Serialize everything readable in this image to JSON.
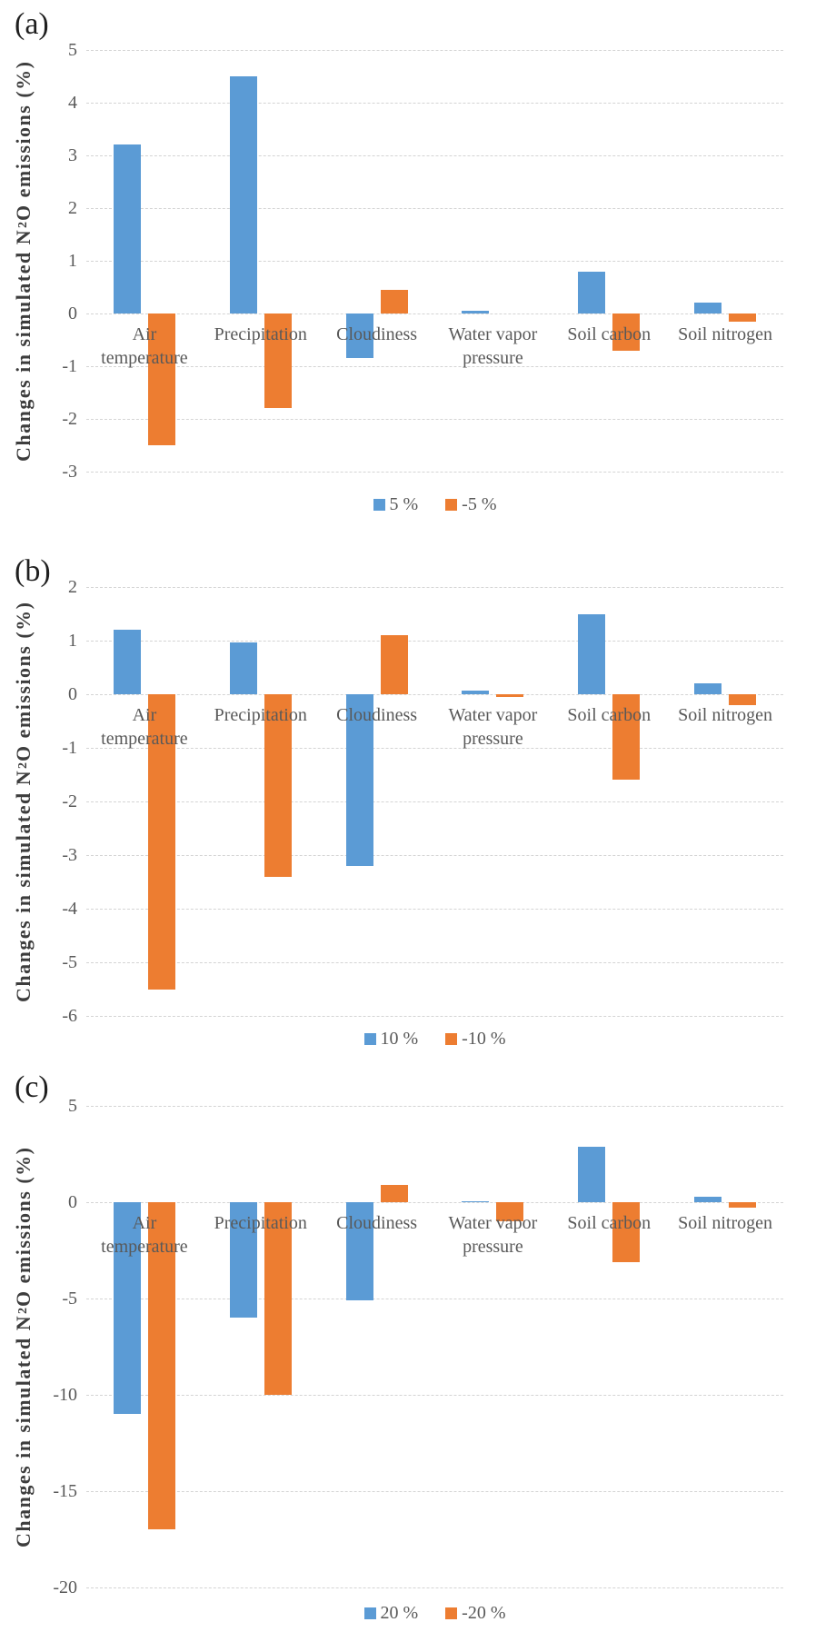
{
  "figure": {
    "background": "#ffffff",
    "text_color": "#595959",
    "gridline_color": "#d4d4d4",
    "positive_series_color": "#5B9BD5",
    "negative_series_color": "#ED7D31",
    "ylabel": "Changes in simulated N₂O emissions (%)",
    "ylabel_parts": {
      "pre": "Changes in simulated N",
      "sub": "2",
      "post": "O emissions (%)"
    }
  },
  "chart_data": [
    {
      "type": "bar",
      "panel_label": "(a)",
      "categories": [
        "Air temperature",
        "Precipitation",
        "Cloudiness",
        "Water vapor pressure",
        "Soil carbon",
        "Soil nitrogen"
      ],
      "category_lines": [
        [
          "Air",
          "temperature"
        ],
        [
          "Precipitation"
        ],
        [
          "Cloudiness"
        ],
        [
          "Water vapor",
          "pressure"
        ],
        [
          "Soil carbon"
        ],
        [
          "Soil nitrogen"
        ]
      ],
      "series": [
        {
          "name": "5 %",
          "color": "#5B9BD5",
          "values": [
            3.2,
            4.5,
            -0.85,
            0.05,
            0.8,
            0.2
          ]
        },
        {
          "name": "-5 %",
          "color": "#ED7D31",
          "values": [
            -2.5,
            -1.8,
            0.45,
            0,
            -0.7,
            -0.15
          ]
        }
      ],
      "ylabel": "Changes in simulated N₂O emissions (%)",
      "ylim": [
        -3,
        5
      ],
      "yticks": [
        5,
        4,
        3,
        2,
        1,
        0,
        -1,
        -2,
        -3
      ],
      "grid": true,
      "legend_position": "bottom"
    },
    {
      "type": "bar",
      "panel_label": "(b)",
      "categories": [
        "Air temperature",
        "Precipitation",
        "Cloudiness",
        "Water vapor pressure",
        "Soil carbon",
        "Soil nitrogen"
      ],
      "category_lines": [
        [
          "Air",
          "temperature"
        ],
        [
          "Precipitation"
        ],
        [
          "Cloudiness"
        ],
        [
          "Water vapor",
          "pressure"
        ],
        [
          "Soil carbon"
        ],
        [
          "Soil nitrogen"
        ]
      ],
      "series": [
        {
          "name": "10 %",
          "color": "#5B9BD5",
          "values": [
            1.2,
            0.97,
            -3.2,
            0.07,
            1.5,
            0.2
          ]
        },
        {
          "name": "-10 %",
          "color": "#ED7D31",
          "values": [
            -5.5,
            -3.4,
            1.1,
            -0.05,
            -1.6,
            -0.2
          ]
        }
      ],
      "ylabel": "Changes in simulated N₂O emissions (%)",
      "ylim": [
        -6,
        2
      ],
      "yticks": [
        2,
        1,
        0,
        -1,
        -2,
        -3,
        -4,
        -5,
        -6
      ],
      "grid": true,
      "legend_position": "bottom"
    },
    {
      "type": "bar",
      "panel_label": "(c)",
      "categories": [
        "Air temperature",
        "Precipitation",
        "Cloudiness",
        "Water vapor pressure",
        "Soil carbon",
        "Soil nitrogen"
      ],
      "category_lines": [
        [
          "Air",
          "temperature"
        ],
        [
          "Precipitation"
        ],
        [
          "Cloudiness"
        ],
        [
          "Water vapor",
          "pressure"
        ],
        [
          "Soil carbon"
        ],
        [
          "Soil nitrogen"
        ]
      ],
      "series": [
        {
          "name": "20 %",
          "color": "#5B9BD5",
          "values": [
            -11,
            -6,
            -5.1,
            0.05,
            2.9,
            0.3
          ]
        },
        {
          "name": "-20 %",
          "color": "#ED7D31",
          "values": [
            -17,
            -10,
            0.9,
            -1.0,
            -3.1,
            -0.3
          ]
        }
      ],
      "ylabel": "Changes in simulated N₂O emissions (%)",
      "ylim": [
        -20,
        5
      ],
      "yticks": [
        5,
        0,
        -5,
        -10,
        -15,
        -20
      ],
      "grid": true,
      "legend_position": "bottom"
    }
  ]
}
